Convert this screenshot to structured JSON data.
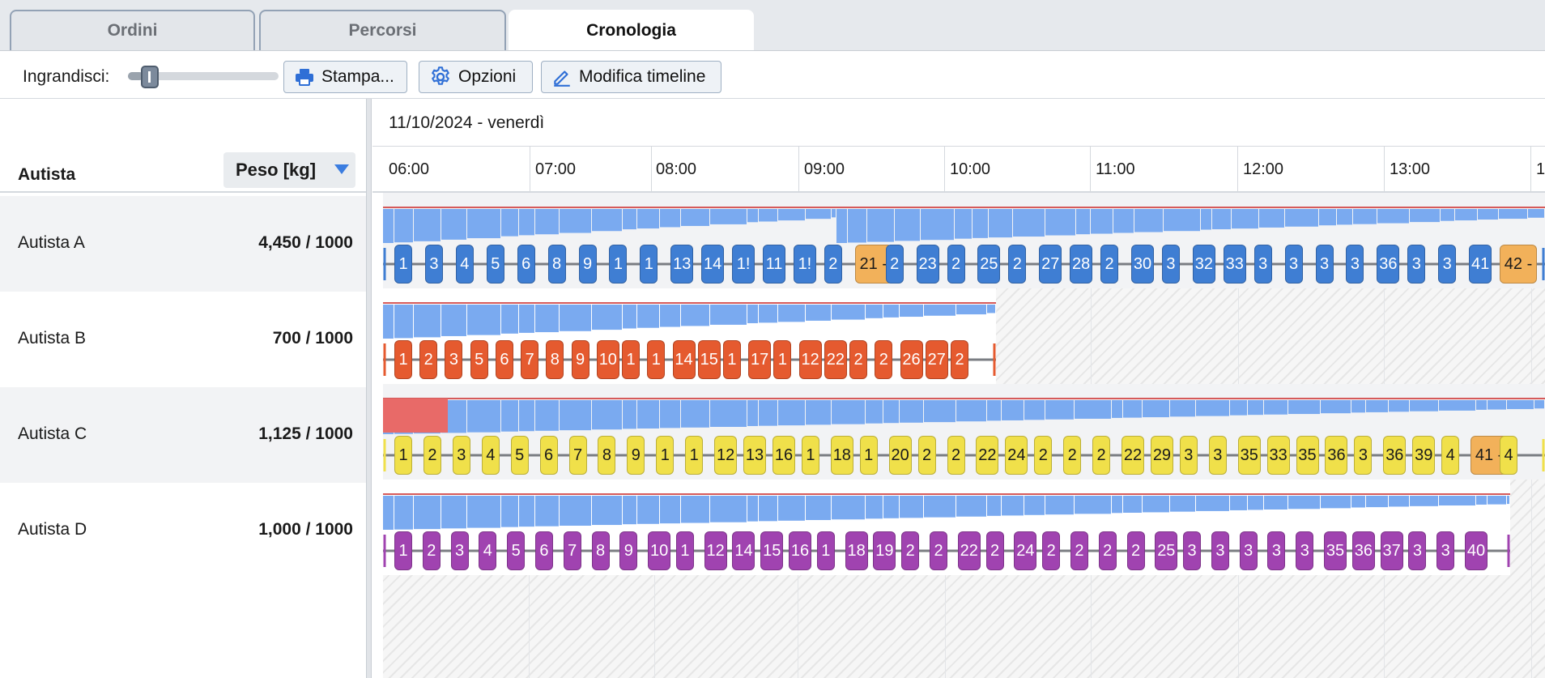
{
  "tabs": [
    {
      "label": "Ordini",
      "active": false
    },
    {
      "label": "Percorsi",
      "active": false
    },
    {
      "label": "Cronologia",
      "active": true
    }
  ],
  "toolbar": {
    "zoom_label": "Ingrandisci:",
    "zoom_level": 0.1,
    "print_label": "Stampa...",
    "options_label": "Opzioni",
    "edit_label": "Modifica timeline"
  },
  "columns": {
    "driver": "Autista",
    "weight": "Peso [kg]"
  },
  "timeline": {
    "date": "11/10/2024 - venerdì",
    "hours": [
      "06:00",
      "07:00",
      "08:00",
      "09:00",
      "10:00",
      "11:00",
      "12:00",
      "13:00",
      "1"
    ]
  },
  "colors": {
    "load_bar": "#7aaaf0",
    "overload_bar": "#e86a68",
    "capacity_line": "#d65a5a",
    "delayed_stop": "#f2b15a"
  },
  "drivers": [
    {
      "name": "Autista A",
      "weight": "4,450 / 1000",
      "stop_color": "#3f7ed3",
      "text_color": "#ffffff",
      "stops": [
        "1",
        "3",
        "4",
        "5",
        "6",
        "8",
        "9",
        "1",
        "1",
        "13",
        "14",
        "1!",
        "11",
        "1!",
        "2",
        "21 -",
        "2",
        "23",
        "2",
        "25",
        "2",
        "27",
        "28",
        "2",
        "30",
        "3",
        "32",
        "33",
        "3",
        "3",
        "3",
        "3",
        "36",
        "3",
        "3",
        "41",
        "42 -"
      ],
      "delayed": [
        "21 -",
        "42 -"
      ]
    },
    {
      "name": "Autista B",
      "weight": "700 / 1000",
      "stop_color": "#e55a2f",
      "text_color": "#ffffff",
      "stops": [
        "1",
        "2",
        "3",
        "5",
        "6",
        "7",
        "8",
        "9",
        "10",
        "1",
        "1",
        "14",
        "15",
        "1",
        "17",
        "1",
        "12",
        "22",
        "2",
        "2",
        "26",
        "27",
        "2"
      ],
      "delayed": []
    },
    {
      "name": "Autista C",
      "weight": "1,125 / 1000",
      "stop_color": "#f0e04a",
      "text_color": "#1a1a1a",
      "stops": [
        "1",
        "2",
        "3",
        "4",
        "5",
        "6",
        "7",
        "8",
        "9",
        "1",
        "1",
        "12",
        "13",
        "16",
        "1",
        "18",
        "1",
        "20",
        "2",
        "2",
        "22",
        "24",
        "2",
        "2",
        "2",
        "22",
        "29",
        "3",
        "3",
        "35",
        "33",
        "35",
        "36",
        "3",
        "36",
        "39",
        "4",
        "41 -",
        "4"
      ],
      "delayed": [
        "41 -"
      ]
    },
    {
      "name": "Autista D",
      "weight": "1,000 / 1000",
      "stop_color": "#a043b0",
      "text_color": "#ffffff",
      "stops": [
        "1",
        "2",
        "3",
        "4",
        "5",
        "6",
        "7",
        "8",
        "9",
        "10",
        "1",
        "12",
        "14",
        "15",
        "16",
        "1",
        "18",
        "19",
        "2",
        "2",
        "22",
        "2",
        "24",
        "2",
        "2",
        "2",
        "2",
        "25",
        "3",
        "3",
        "3",
        "3",
        "3",
        "35",
        "36",
        "37",
        "3",
        "3",
        "40"
      ],
      "delayed": []
    }
  ]
}
